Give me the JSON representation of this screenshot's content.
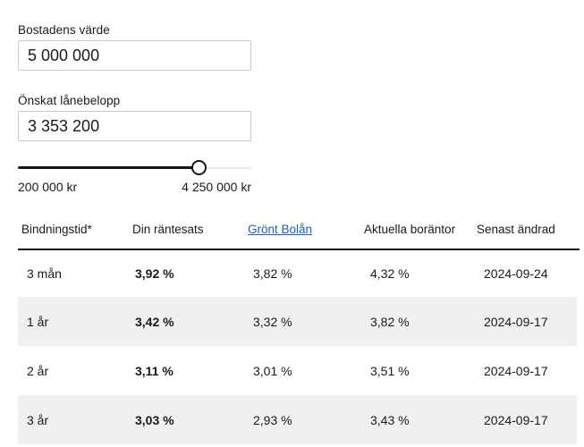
{
  "form": {
    "home_value": {
      "label": "Bostadens värde",
      "value": "5 000 000"
    },
    "loan_amount": {
      "label": "Önskat lånebelopp",
      "value": "3 353 200"
    },
    "slider": {
      "min_label": "200 000 kr",
      "max_label": "4 250 000 kr",
      "fill_percent": 78
    }
  },
  "table": {
    "headers": [
      "Bindningstid*",
      "Din räntesats",
      "Grönt Bolån",
      "Aktuella boräntor",
      "Senast ändrad"
    ],
    "rows": [
      {
        "term": "3 mån",
        "your_rate": "3,92 %",
        "green_rate": "3,82 %",
        "current_rate": "4,32 %",
        "changed": "2024-09-24"
      },
      {
        "term": "1 år",
        "your_rate": "3,42 %",
        "green_rate": "3,32 %",
        "current_rate": "3,82 %",
        "changed": "2024-09-17"
      },
      {
        "term": "2 år",
        "your_rate": "3,11 %",
        "green_rate": "3,01 %",
        "current_rate": "3,51 %",
        "changed": "2024-09-17"
      },
      {
        "term": "3 år",
        "your_rate": "3,03 %",
        "green_rate": "2,93 %",
        "current_rate": "3,43 %",
        "changed": "2024-09-17"
      }
    ]
  },
  "colors": {
    "text": "#1a1a1a",
    "link_blue": "#1a5bc5",
    "row_alt_gray": "#f0f0f0",
    "input_border": "#c9c9c9",
    "slider_track_active": "#151515",
    "slider_track_inactive": "#e8e8e8",
    "header_rule": "#111111"
  }
}
